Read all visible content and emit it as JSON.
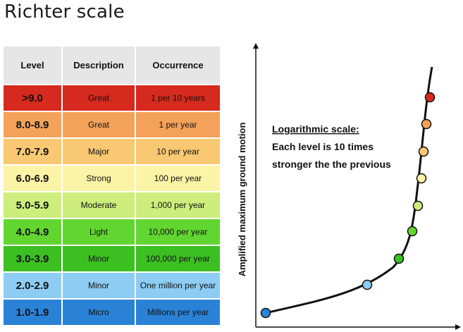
{
  "title": "Richter scale",
  "table": {
    "headers": [
      "Level",
      "Description",
      "Occurrence"
    ],
    "rows": [
      {
        "level": ">9.0",
        "description": "Great",
        "occurrence": "1 per 10 years",
        "color": "#d62a1e"
      },
      {
        "level": "8.0-8.9",
        "description": "Great",
        "occurrence": "1 per year",
        "color": "#f4a25a"
      },
      {
        "level": "7.0-7.9",
        "description": "Major",
        "occurrence": "10 per year",
        "color": "#f9c872"
      },
      {
        "level": "6.0-6.9",
        "description": "Strong",
        "occurrence": "100 per year",
        "color": "#fbf3a6"
      },
      {
        "level": "5.0-5.9",
        "description": "Moderate",
        "occurrence": "1,000 per year",
        "color": "#cdee7c"
      },
      {
        "level": "4.0-4.9",
        "description": "Light",
        "occurrence": "10,000 per year",
        "color": "#62d630"
      },
      {
        "level": "3.0-3.9",
        "description": "Minor",
        "occurrence": "100,000 per year",
        "color": "#3cbf21"
      },
      {
        "level": "2.0-2.9",
        "description": "Minor",
        "occurrence": "One million per year",
        "color": "#8ecdf3"
      },
      {
        "level": "1.0-1.9",
        "description": "Micro",
        "occurrence": "Millions per year",
        "color": "#2a82d6"
      }
    ]
  },
  "diagram": {
    "y_axis_label": "Amplified maximum ground motion",
    "annotation": {
      "heading": "Logarithmic scale:",
      "line1": "Each level is 10 times",
      "line2": "stronger the the previous"
    }
  }
}
